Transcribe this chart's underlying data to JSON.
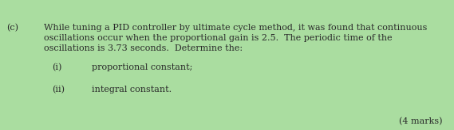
{
  "background_color": "#aadda0",
  "label_c": "(c)",
  "main_text_line1": "While tuning a PID controller by ultimate cycle method, it was found that continuous",
  "main_text_line2": "oscillations occur when the proportional gain is 2.5.  The periodic time of the",
  "main_text_line3": "oscillations is 3.73 seconds.  Determine the:",
  "item_i_label": "(i)",
  "item_i_text": "proportional constant;",
  "item_ii_label": "(ii)",
  "item_ii_text": "integral constant.",
  "marks_text": "(4 marks)",
  "font_size": 8.0,
  "text_color": "#2a2a2a",
  "font_family": "DejaVu Serif"
}
